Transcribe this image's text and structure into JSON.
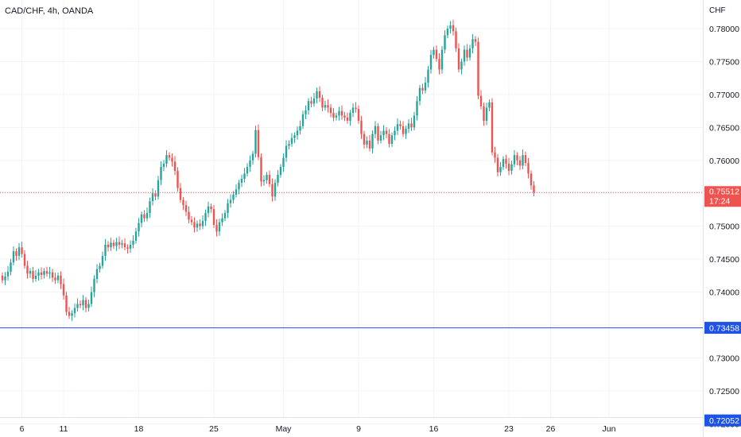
{
  "header": {
    "symbol_label": "CAD/CHF, 4h, OANDA"
  },
  "price_axis": {
    "currency": "CHF",
    "ticks": [
      "0.78000",
      "0.77500",
      "0.77000",
      "0.76500",
      "0.76000",
      "0.75500",
      "0.75000",
      "0.74500",
      "0.74000",
      "0.73500",
      "0.73000",
      "0.72500",
      "0.72000"
    ]
  },
  "time_axis": {
    "ticks": [
      "6",
      "11",
      "18",
      "25",
      "May",
      "9",
      "16",
      "23",
      "26",
      "Jun"
    ]
  },
  "current_price": {
    "value": "0.75512",
    "countdown": "17:24",
    "color": "#ef5350"
  },
  "horizontal_line": {
    "value": "0.73458",
    "color": "#1e53e5"
  },
  "bottom_level": {
    "value": "0.72052"
  },
  "colors": {
    "up": "#26a69a",
    "down": "#ef5350",
    "grid": "#f0f3fa",
    "axis_text": "#131722"
  },
  "chart_data": {
    "type": "candlestick",
    "title": "CAD/CHF, 4h, OANDA",
    "ylabel": "CHF",
    "ylim": [
      0.7195,
      0.7815
    ],
    "x_ticks": [
      {
        "label": "6",
        "index": 7
      },
      {
        "label": "11",
        "index": 22
      },
      {
        "label": "18",
        "index": 49
      },
      {
        "label": "25",
        "index": 76
      },
      {
        "label": "May",
        "index": 101
      },
      {
        "label": "9",
        "index": 128
      },
      {
        "label": "16",
        "index": 155
      },
      {
        "label": "23",
        "index": 182
      },
      {
        "label": "26",
        "index": 197
      },
      {
        "label": "Jun",
        "index": 218
      }
    ],
    "series": [
      {
        "close": [
          0.7418,
          0.7424,
          0.7431,
          0.7445,
          0.7462,
          0.7455,
          0.7468,
          0.7458,
          0.744,
          0.7428,
          0.7432,
          0.742,
          0.7425,
          0.743,
          0.7426,
          0.7432,
          0.7428,
          0.743,
          0.7422,
          0.7418,
          0.7425,
          0.7412,
          0.7395,
          0.737,
          0.7364,
          0.7368,
          0.7376,
          0.7382,
          0.738,
          0.7388,
          0.7376,
          0.7382,
          0.74,
          0.742,
          0.7435,
          0.744,
          0.7455,
          0.7472,
          0.7468,
          0.7475,
          0.747,
          0.7476,
          0.7472,
          0.7474,
          0.7468,
          0.7466,
          0.7472,
          0.7478,
          0.7492,
          0.7505,
          0.7518,
          0.7512,
          0.752,
          0.7538,
          0.755,
          0.7545,
          0.757,
          0.759,
          0.7595,
          0.7608,
          0.7604,
          0.7598,
          0.7584,
          0.7558,
          0.754,
          0.7532,
          0.7522,
          0.751,
          0.7506,
          0.7498,
          0.7504,
          0.75,
          0.7508,
          0.752,
          0.753,
          0.7526,
          0.7502,
          0.7492,
          0.7506,
          0.7512,
          0.752,
          0.7535,
          0.754,
          0.7548,
          0.7556,
          0.7566,
          0.7572,
          0.758,
          0.759,
          0.76,
          0.761,
          0.7646,
          0.7605,
          0.7568,
          0.757,
          0.7578,
          0.7564,
          0.7545,
          0.7566,
          0.7578,
          0.759,
          0.7604,
          0.7622,
          0.7625,
          0.7634,
          0.7638,
          0.7645,
          0.7652,
          0.767,
          0.7676,
          0.769,
          0.7686,
          0.7694,
          0.7705,
          0.7695,
          0.768,
          0.7684,
          0.768,
          0.7672,
          0.7665,
          0.7668,
          0.7675,
          0.7668,
          0.7665,
          0.766,
          0.7672,
          0.768,
          0.7678,
          0.766,
          0.764,
          0.7624,
          0.763,
          0.7618,
          0.764,
          0.7652,
          0.763,
          0.7638,
          0.7645,
          0.764,
          0.7625,
          0.7638,
          0.7645,
          0.7655,
          0.7652,
          0.764,
          0.7648,
          0.7656,
          0.765,
          0.7668,
          0.769,
          0.771,
          0.7706,
          0.7718,
          0.7738,
          0.776,
          0.7768,
          0.7754,
          0.7738,
          0.7768,
          0.779,
          0.78,
          0.7805,
          0.7796,
          0.777,
          0.7738,
          0.775,
          0.7768,
          0.7756,
          0.777,
          0.7784,
          0.778,
          0.7698,
          0.7682,
          0.766,
          0.768,
          0.7688,
          0.7612,
          0.7604,
          0.7582,
          0.759,
          0.7602,
          0.7595,
          0.7584,
          0.7594,
          0.7608,
          0.76,
          0.7592,
          0.7608,
          0.7596,
          0.758,
          0.7562,
          0.7551
        ],
        "open": [
          0.7425,
          0.7418,
          0.7424,
          0.7431,
          0.7445,
          0.7462,
          0.7455,
          0.7468,
          0.7458,
          0.744,
          0.7428,
          0.7432,
          0.742,
          0.7425,
          0.743,
          0.7426,
          0.7432,
          0.7428,
          0.743,
          0.7422,
          0.7418,
          0.7425,
          0.7412,
          0.7395,
          0.737,
          0.7364,
          0.7368,
          0.7376,
          0.7382,
          0.738,
          0.7388,
          0.7376,
          0.7382,
          0.74,
          0.742,
          0.7435,
          0.744,
          0.7455,
          0.7472,
          0.7468,
          0.7475,
          0.747,
          0.7476,
          0.7472,
          0.7474,
          0.7468,
          0.7466,
          0.7472,
          0.7478,
          0.7492,
          0.7505,
          0.7518,
          0.7512,
          0.752,
          0.7538,
          0.755,
          0.7545,
          0.757,
          0.759,
          0.7595,
          0.7608,
          0.7604,
          0.7598,
          0.7584,
          0.7558,
          0.754,
          0.7532,
          0.7522,
          0.751,
          0.7506,
          0.7498,
          0.7504,
          0.75,
          0.7508,
          0.752,
          0.753,
          0.7526,
          0.7502,
          0.7492,
          0.7506,
          0.7512,
          0.752,
          0.7535,
          0.754,
          0.7548,
          0.7556,
          0.7566,
          0.7572,
          0.758,
          0.759,
          0.76,
          0.761,
          0.7646,
          0.7605,
          0.7568,
          0.757,
          0.7578,
          0.7564,
          0.7545,
          0.7566,
          0.7578,
          0.759,
          0.7604,
          0.7622,
          0.7625,
          0.7634,
          0.7638,
          0.7645,
          0.7652,
          0.767,
          0.7676,
          0.769,
          0.7686,
          0.7694,
          0.7705,
          0.7695,
          0.768,
          0.7684,
          0.768,
          0.7672,
          0.7665,
          0.7668,
          0.7675,
          0.7668,
          0.7665,
          0.766,
          0.7672,
          0.768,
          0.7678,
          0.766,
          0.764,
          0.7624,
          0.763,
          0.7618,
          0.764,
          0.7652,
          0.763,
          0.7638,
          0.7645,
          0.764,
          0.7625,
          0.7638,
          0.7645,
          0.7655,
          0.7652,
          0.764,
          0.7648,
          0.7656,
          0.765,
          0.7668,
          0.769,
          0.771,
          0.7706,
          0.7718,
          0.7738,
          0.776,
          0.7768,
          0.7754,
          0.7738,
          0.7768,
          0.779,
          0.78,
          0.7805,
          0.7796,
          0.777,
          0.7738,
          0.775,
          0.7768,
          0.7756,
          0.777,
          0.7784,
          0.778,
          0.7698,
          0.7682,
          0.766,
          0.768,
          0.7688,
          0.7612,
          0.7604,
          0.7582,
          0.759,
          0.7602,
          0.7595,
          0.7584,
          0.7594,
          0.7608,
          0.76,
          0.7592,
          0.7608,
          0.7596,
          0.758,
          0.7562
        ]
      }
    ]
  }
}
